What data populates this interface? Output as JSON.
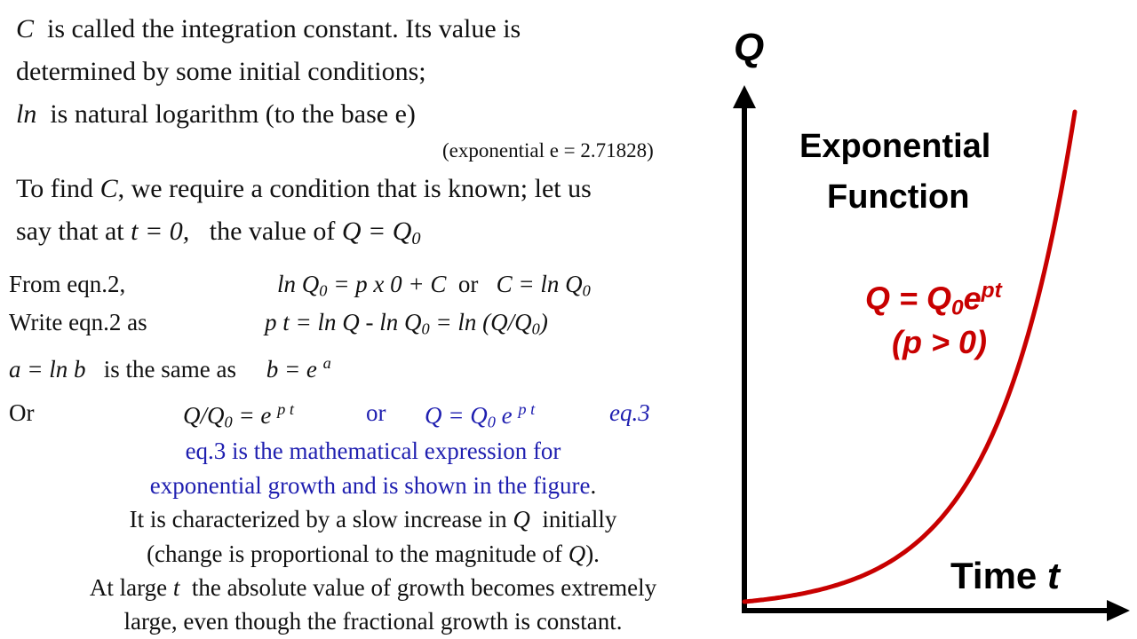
{
  "intro": {
    "line1_var": "C",
    "line1_rest": "is called the integration constant.  Its value is",
    "line2": "determined by some initial conditions;",
    "line3_var": "ln",
    "line3_rest": "is natural logarithm (to the base e)",
    "note": "(exponential e = 2.71828)",
    "line4_a": "To find",
    "line4_var": "C",
    "line4_b": ", we require a condition that is known; let us",
    "line5_a": "say that at",
    "line5_cond": "t = 0,",
    "line5_b": "the value of",
    "line5_q": "Q  = Q",
    "line5_sub": "0"
  },
  "equations": {
    "from_label": "From eqn.2,",
    "from_expr_a": "ln Q",
    "from_expr_sub": "0",
    "from_expr_b": " = p x 0 + C",
    "from_or": "or",
    "from_expr_c": "C = ln Q",
    "from_expr_c_sub": "0",
    "write_label": "Write eqn.2  as",
    "write_expr_a": "p t = ln Q - ln Q",
    "write_sub1": "0",
    "write_expr_b": " = ln (Q/Q",
    "write_sub2": "0",
    "write_expr_c": ")",
    "same_a": "a = ln b",
    "same_text": "is the same as",
    "same_b": "b = e",
    "same_sup": "a",
    "or_label": "Or",
    "ratio_a": "Q/Q",
    "ratio_sub": "0",
    "ratio_b": " =  e",
    "ratio_sup": "p t",
    "or_mid": "or",
    "blue_a": "Q = Q",
    "blue_sub": "0",
    "blue_b": " e",
    "blue_sup": "p t",
    "eq_label": "eq.3"
  },
  "description": {
    "blue1": "eq.3 is the mathematical expression for",
    "blue2": "exponential growth and is shown in the figure",
    "blue2_end": ".",
    "l3_a": "It is characterized by a slow increase in",
    "l3_var": "Q",
    "l3_b": "initially",
    "l4_a": "(change is proportional to the magnitude of",
    "l4_var": "Q",
    "l4_b": ").",
    "l5_a": "At large",
    "l5_var": "t",
    "l5_b": "the absolute value of growth becomes extremely",
    "l6": "large, even though the fractional growth is constant."
  },
  "graph": {
    "y_axis_label": "Q",
    "x_axis_label": "Time",
    "x_axis_var": "t",
    "title_line1": "Exponential",
    "title_line2": "Function",
    "formula_a": "Q = Q",
    "formula_sub": "0",
    "formula_b": "e",
    "formula_sup": "pt",
    "condition": "(p > 0)",
    "curve_color": "#c80000",
    "axis_color": "#000000"
  }
}
